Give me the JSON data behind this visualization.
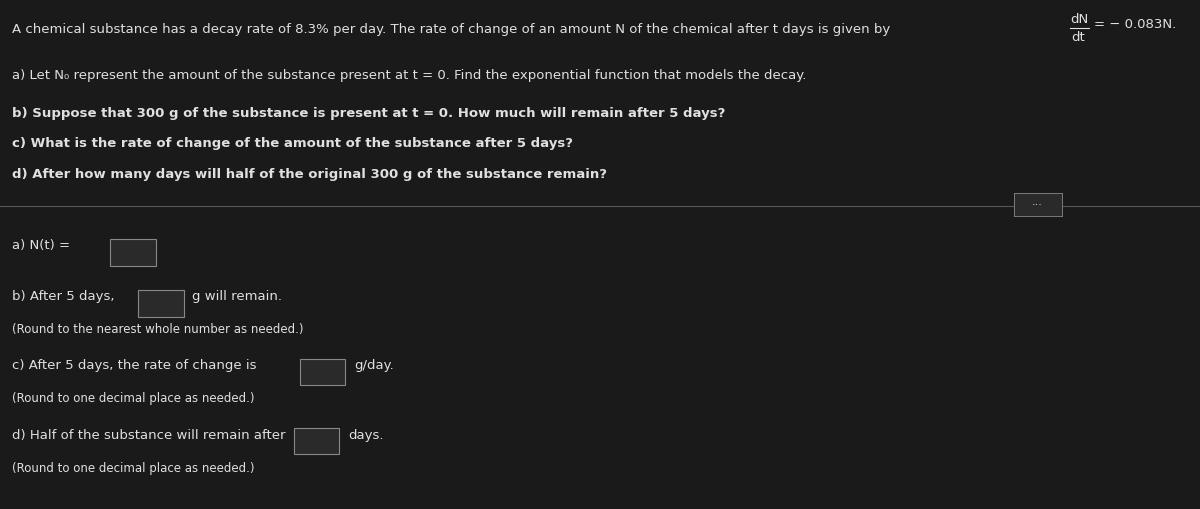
{
  "bg_color": "#1a1a1a",
  "text_color": "#e0e0e0",
  "header_text": "A chemical substance has a decay rate of 8.3% per day. The rate of change of an amount N of the chemical after t days is given by",
  "header_formula_top": "dN",
  "header_formula_bottom": "dt",
  "header_formula_eq": "= − 0.083N.",
  "question_a": "a) Let N₀ represent the amount of the substance present at t = 0. Find the exponential function that models the decay.",
  "question_b": "b) Suppose that 300 g of the substance is present at t = 0. How much will remain after 5 days?",
  "question_c": "c) What is the rate of change of the amount of the substance after 5 days?",
  "question_d": "d) After how many days will half of the original 300 g of the substance remain?",
  "answer_a_prefix": "a) N(t) =",
  "answer_b_prefix": "b) After 5 days,",
  "answer_b_suffix": "g will remain.",
  "answer_b_note": "(Round to the nearest whole number as needed.)",
  "answer_c_prefix": "c) After 5 days, the rate of change is",
  "answer_c_suffix": "g/day.",
  "answer_c_note": "(Round to one decimal place as needed.)",
  "answer_d_prefix": "d) Half of the substance will remain after",
  "answer_d_suffix": "days.",
  "answer_d_note": "(Round to one decimal place as needed.)",
  "box_edge_color": "#888888",
  "divider_color": "#555555"
}
